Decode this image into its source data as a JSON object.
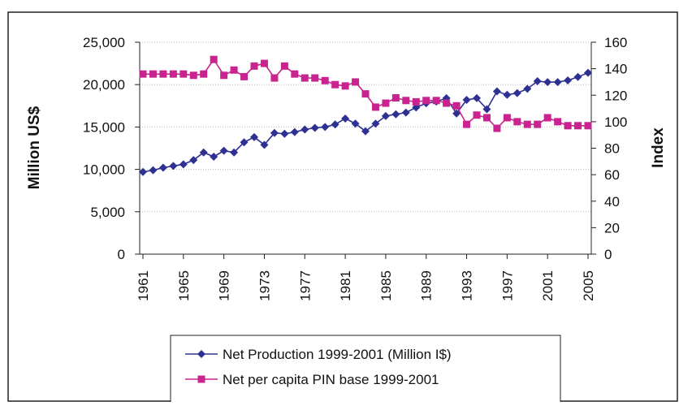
{
  "chart_data": {
    "type": "line",
    "x": [
      1961,
      1962,
      1963,
      1964,
      1965,
      1966,
      1967,
      1968,
      1969,
      1970,
      1971,
      1972,
      1973,
      1974,
      1975,
      1976,
      1977,
      1978,
      1979,
      1980,
      1981,
      1982,
      1983,
      1984,
      1985,
      1986,
      1987,
      1988,
      1989,
      1990,
      1991,
      1992,
      1993,
      1994,
      1995,
      1996,
      1997,
      1998,
      1999,
      2000,
      2001,
      2002,
      2003,
      2004,
      2005
    ],
    "xlim": [
      1961,
      2005
    ],
    "xticks": [
      1961,
      1965,
      1969,
      1973,
      1977,
      1981,
      1985,
      1989,
      1993,
      1997,
      2001,
      2005
    ],
    "ylabel": "Million US$",
    "y2label": "Index",
    "ylim": [
      0,
      25000
    ],
    "yticks": [
      0,
      {
        "value": 5000,
        "label": "5,000"
      },
      {
        "value": 10000,
        "label": "10,000"
      },
      {
        "value": 15000,
        "label": "15,000"
      },
      {
        "value": 20000,
        "label": "20,000"
      },
      {
        "value": 25000,
        "label": "25,000"
      }
    ],
    "y2lim": [
      0,
      160
    ],
    "y2ticks": [
      0,
      20,
      40,
      60,
      80,
      100,
      120,
      140,
      160
    ],
    "grid": true,
    "legend": "bottom",
    "series": [
      {
        "name": "Net Production 1999-2001 (Million I$)",
        "color": "#2e3192",
        "marker": "diamond",
        "values": [
          9700,
          9900,
          10200,
          10400,
          10600,
          11100,
          12000,
          11500,
          12200,
          12000,
          13200,
          13800,
          12900,
          14300,
          14200,
          14400,
          14700,
          14900,
          15000,
          15300,
          16000,
          15400,
          14500,
          15400,
          16300,
          16500,
          16700,
          17300,
          17800,
          18000,
          18400,
          16600,
          18200,
          18400,
          17100,
          19200,
          18800,
          19000,
          19500,
          20400,
          20300,
          20300,
          20500,
          20900,
          21400
        ]
      },
      {
        "name": "Net per capita PIN base 1999-2001",
        "color": "#c8238f",
        "marker": "square",
        "axis": "y2",
        "values": [
          136,
          136,
          136,
          136,
          136,
          135,
          136,
          147,
          135,
          139,
          134,
          142,
          144,
          133,
          142,
          136,
          133,
          133,
          131,
          128,
          127,
          130,
          121,
          111,
          114,
          118,
          116,
          115,
          116,
          116,
          114,
          112,
          98,
          105,
          103,
          95,
          103,
          100,
          98,
          98,
          103,
          100,
          97,
          97,
          97
        ]
      }
    ]
  }
}
